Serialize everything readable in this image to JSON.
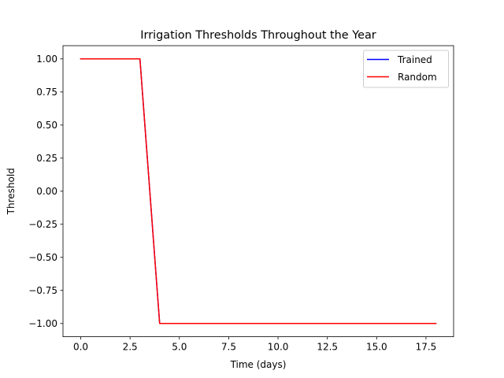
{
  "chart_data": {
    "type": "line",
    "title": "Irrigation Thresholds Throughout the Year",
    "xlabel": "Time (days)",
    "ylabel": "Threshold",
    "xlim": [
      -0.9,
      18.9
    ],
    "ylim": [
      -1.1,
      1.1
    ],
    "xticks": [
      0.0,
      2.5,
      5.0,
      7.5,
      10.0,
      12.5,
      15.0,
      17.5
    ],
    "xtick_labels": [
      "0.0",
      "2.5",
      "5.0",
      "7.5",
      "10.0",
      "12.5",
      "15.0",
      "17.5"
    ],
    "yticks": [
      1.0,
      0.75,
      0.5,
      0.25,
      0.0,
      -0.25,
      -0.5,
      -0.75,
      -1.0
    ],
    "ytick_labels": [
      "1.00",
      "0.75",
      "0.50",
      "0.25",
      "0.00",
      "−0.25",
      "−0.50",
      "−0.75",
      "−1.00"
    ],
    "grid": false,
    "legend_position": "top-right",
    "series": [
      {
        "name": "Trained",
        "color": "#0000ff",
        "x": [
          0,
          1,
          2,
          3,
          4,
          5,
          6,
          7,
          8,
          9,
          10,
          11,
          12,
          13,
          14,
          15,
          16,
          17,
          18
        ],
        "y": [
          1,
          1,
          1,
          1,
          -1,
          -1,
          -1,
          -1,
          -1,
          -1,
          -1,
          -1,
          -1,
          -1,
          -1,
          -1,
          -1,
          -1,
          -1
        ]
      },
      {
        "name": "Random",
        "color": "#ff0000",
        "x": [
          0,
          1,
          2,
          3,
          4,
          5,
          6,
          7,
          8,
          9,
          10,
          11,
          12,
          13,
          14,
          15,
          16,
          17,
          18
        ],
        "y": [
          1,
          1,
          1,
          1,
          -1,
          -1,
          -1,
          -1,
          -1,
          -1,
          -1,
          -1,
          -1,
          -1,
          -1,
          -1,
          -1,
          -1,
          -1
        ]
      }
    ]
  }
}
